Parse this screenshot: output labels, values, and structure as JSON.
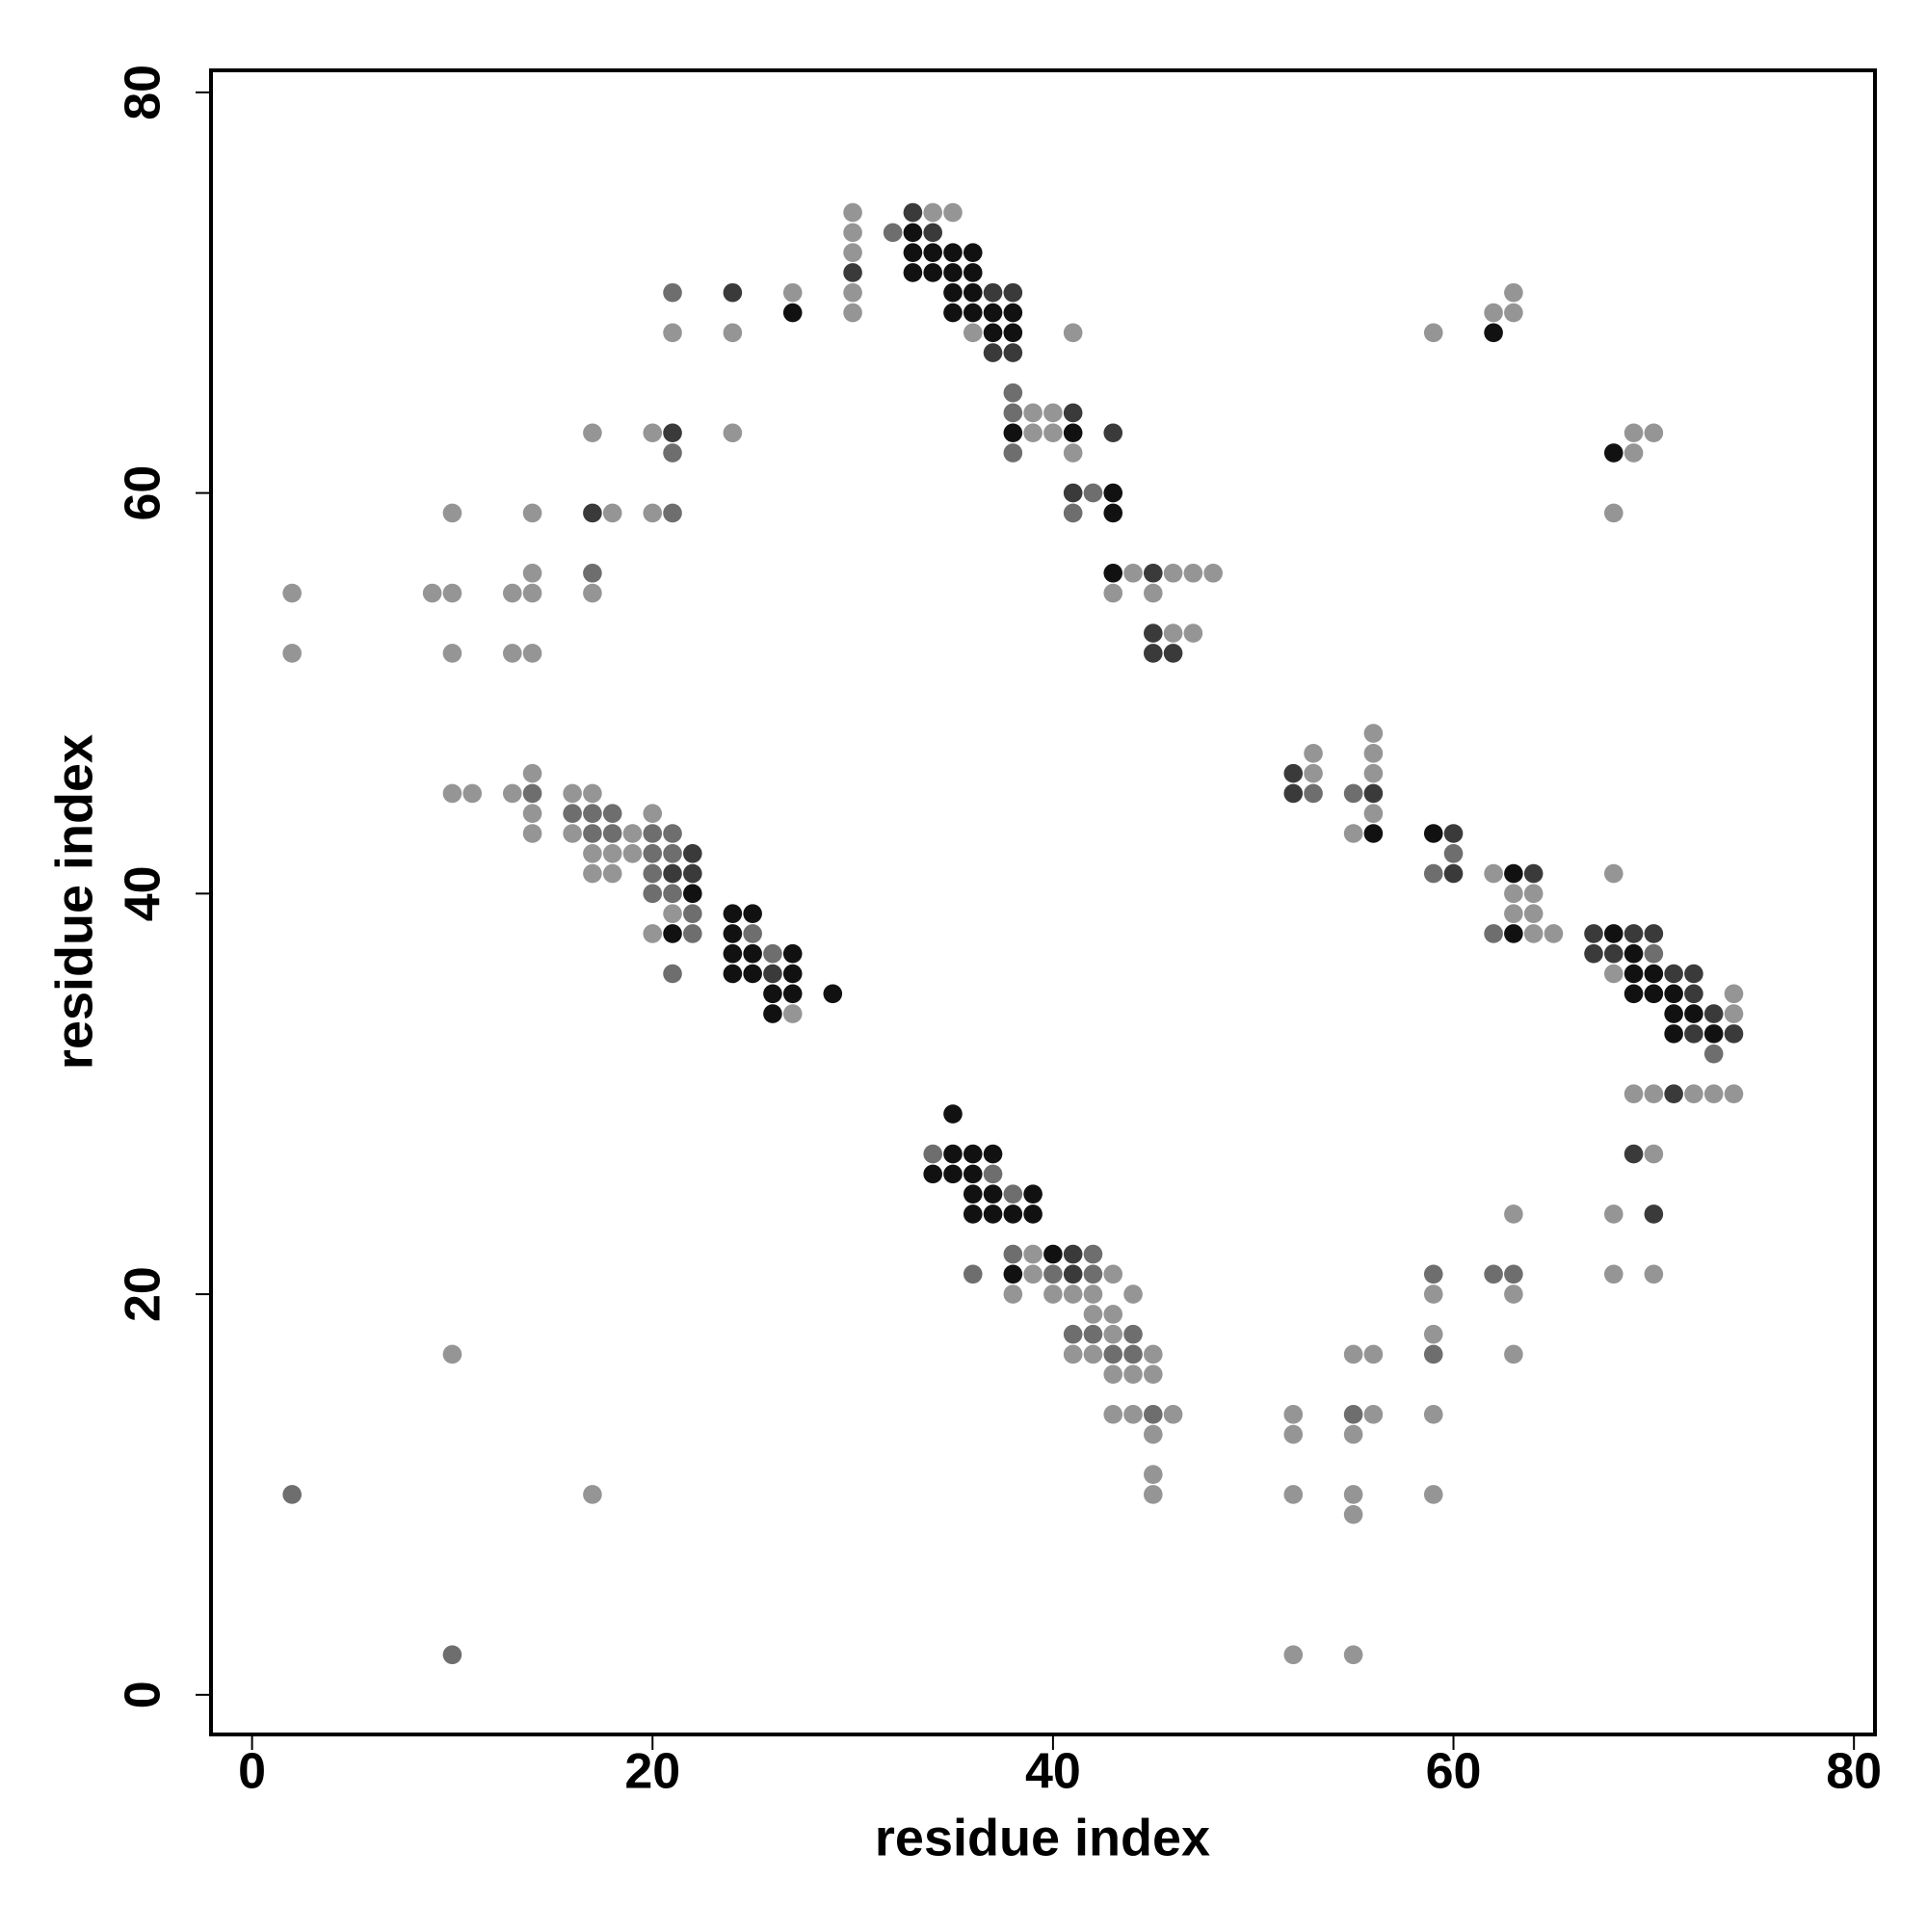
{
  "chart_data": {
    "type": "scatter",
    "x_label": "residue index",
    "y_label": "residue index",
    "xlim": [
      -2.05,
      81.05
    ],
    "ylim": [
      -1.98,
      81.1
    ],
    "xticks": [
      0,
      20,
      40,
      60,
      80
    ],
    "yticks": [
      0,
      20,
      40,
      60,
      80
    ],
    "grid": false,
    "series": [
      {
        "color": "#111111",
        "x": [
          33,
          33,
          34,
          35,
          36,
          33,
          34,
          35,
          36,
          35,
          36,
          27,
          35,
          36,
          37,
          38,
          37,
          38,
          62,
          38,
          41,
          68,
          43,
          43,
          43,
          56,
          59,
          63,
          22,
          24,
          25,
          21,
          24,
          63,
          68,
          24,
          25,
          27,
          69,
          24,
          25,
          27,
          69,
          70,
          26,
          27,
          29,
          69,
          70,
          71,
          26,
          71,
          72,
          71,
          73,
          35,
          35,
          36,
          37,
          34,
          35,
          36,
          36,
          37,
          39,
          36,
          37,
          38,
          39,
          40,
          38
        ],
        "y": [
          73,
          72,
          72,
          72,
          72,
          71,
          71,
          71,
          71,
          70,
          70,
          69,
          69,
          69,
          69,
          69,
          68,
          68,
          68,
          63,
          63,
          62,
          60,
          59,
          56,
          43,
          43,
          41,
          40,
          39,
          39,
          38,
          38,
          38,
          38,
          37,
          37,
          37,
          37,
          36,
          36,
          36,
          36,
          36,
          35,
          35,
          35,
          35,
          35,
          35,
          34,
          34,
          34,
          33,
          33,
          29,
          27,
          27,
          27,
          26,
          26,
          26,
          25,
          25,
          25,
          24,
          24,
          24,
          24,
          22,
          21
        ]
      },
      {
        "color": "#3a3a3a",
        "x": [
          33,
          34,
          30,
          24,
          37,
          38,
          37,
          38,
          41,
          21,
          43,
          41,
          17,
          45,
          45,
          45,
          46,
          52,
          52,
          56,
          60,
          22,
          21,
          22,
          60,
          64,
          67,
          69,
          70,
          67,
          68,
          26,
          71,
          72,
          72,
          73,
          72,
          74,
          71,
          69,
          70,
          41,
          41
        ],
        "y": [
          74,
          73,
          71,
          70,
          70,
          70,
          67,
          67,
          64,
          63,
          63,
          60,
          59,
          56,
          53,
          52,
          52,
          46,
          45,
          45,
          43,
          42,
          41,
          41,
          41,
          41,
          38,
          38,
          38,
          37,
          37,
          36,
          36,
          36,
          35,
          34,
          33,
          33,
          30,
          27,
          24,
          22,
          21
        ]
      },
      {
        "color": "#6e6e6e",
        "x": [
          32,
          21,
          38,
          38,
          21,
          38,
          42,
          21,
          41,
          17,
          14,
          53,
          55,
          16,
          17,
          18,
          17,
          18,
          20,
          21,
          20,
          21,
          60,
          20,
          59,
          20,
          21,
          22,
          22,
          25,
          62,
          26,
          70,
          21,
          73,
          34,
          37,
          38,
          38,
          42,
          36,
          40,
          42,
          59,
          62,
          63,
          41,
          42,
          44,
          43,
          44,
          59,
          45,
          55,
          2,
          10
        ],
        "y": [
          73,
          70,
          65,
          64,
          62,
          62,
          60,
          59,
          59,
          56,
          45,
          45,
          45,
          44,
          44,
          44,
          43,
          43,
          43,
          43,
          42,
          42,
          42,
          41,
          41,
          40,
          40,
          39,
          38,
          38,
          38,
          37,
          37,
          36,
          32,
          27,
          26,
          25,
          22,
          22,
          21,
          21,
          21,
          21,
          21,
          21,
          18,
          18,
          18,
          17,
          17,
          17,
          14,
          14,
          10,
          2
        ]
      },
      {
        "color": "#959595",
        "x": [
          30,
          34,
          35,
          30,
          30,
          27,
          30,
          63,
          30,
          62,
          63,
          21,
          24,
          36,
          41,
          59,
          39,
          40,
          17,
          20,
          24,
          39,
          40,
          69,
          70,
          41,
          69,
          10,
          14,
          18,
          20,
          68,
          14,
          44,
          46,
          47,
          48,
          2,
          9,
          10,
          13,
          14,
          17,
          43,
          45,
          46,
          47,
          2,
          10,
          13,
          14,
          56,
          53,
          56,
          14,
          53,
          56,
          10,
          11,
          13,
          16,
          17,
          14,
          20,
          56,
          14,
          16,
          19,
          55,
          17,
          18,
          19,
          17,
          18,
          62,
          68,
          63,
          64,
          21,
          63,
          64,
          20,
          64,
          65,
          68,
          74,
          27,
          74,
          69,
          70,
          72,
          73,
          74,
          70,
          63,
          68,
          39,
          39,
          43,
          68,
          70,
          38,
          40,
          41,
          42,
          44,
          59,
          63,
          42,
          43,
          43,
          59,
          10,
          41,
          42,
          45,
          55,
          56,
          63,
          43,
          44,
          45,
          43,
          44,
          46,
          52,
          56,
          59,
          45,
          52,
          55,
          45,
          17,
          45,
          52,
          55,
          59,
          55,
          52,
          55
        ],
        "y": [
          74,
          74,
          74,
          73,
          72,
          70,
          70,
          70,
          69,
          69,
          69,
          68,
          68,
          68,
          68,
          68,
          64,
          64,
          63,
          63,
          63,
          63,
          63,
          63,
          63,
          62,
          62,
          59,
          59,
          59,
          59,
          59,
          56,
          56,
          56,
          56,
          56,
          55,
          55,
          55,
          55,
          55,
          55,
          55,
          55,
          53,
          53,
          52,
          52,
          52,
          52,
          48,
          47,
          47,
          46,
          46,
          46,
          45,
          45,
          45,
          45,
          45,
          44,
          44,
          44,
          43,
          43,
          43,
          43,
          42,
          42,
          42,
          41,
          41,
          41,
          41,
          40,
          40,
          39,
          39,
          39,
          38,
          38,
          38,
          36,
          35,
          34,
          34,
          30,
          30,
          30,
          30,
          30,
          27,
          24,
          24,
          22,
          21,
          21,
          21,
          21,
          20,
          20,
          20,
          20,
          20,
          20,
          20,
          19,
          19,
          18,
          18,
          17,
          17,
          17,
          17,
          17,
          17,
          17,
          16,
          16,
          16,
          14,
          14,
          14,
          14,
          14,
          14,
          13,
          13,
          13,
          11,
          10,
          10,
          10,
          10,
          10,
          9,
          2,
          2
        ]
      }
    ]
  }
}
